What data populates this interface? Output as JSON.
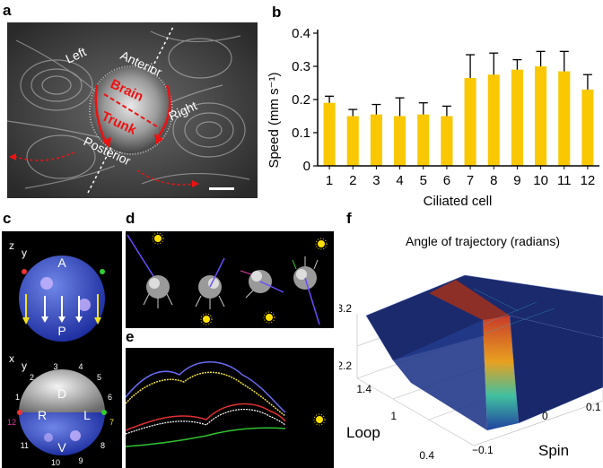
{
  "panel_labels": {
    "a": "a",
    "b": "b",
    "c": "c",
    "d": "d",
    "e": "e",
    "f": "f"
  },
  "panel_a": {
    "labels": {
      "left": "Left",
      "anterior": "Anterior",
      "brain": "Brain",
      "trunk": "Trunk",
      "right": "Right",
      "posterior": "Posterior"
    }
  },
  "chart_data": [
    {
      "type": "bar",
      "panel": "b",
      "categories": [
        "1",
        "2",
        "3",
        "4",
        "5",
        "6",
        "7",
        "8",
        "9",
        "10",
        "11",
        "12"
      ],
      "values": [
        0.19,
        0.15,
        0.155,
        0.15,
        0.155,
        0.15,
        0.265,
        0.275,
        0.29,
        0.3,
        0.285,
        0.23
      ],
      "errors": [
        0.02,
        0.02,
        0.03,
        0.055,
        0.035,
        0.03,
        0.07,
        0.065,
        0.03,
        0.045,
        0.06,
        0.045
      ],
      "xlabel": "Ciliated cell",
      "ylabel": "Speed (mm s⁻¹)",
      "yticks": [
        "0",
        "0.1",
        "0.2",
        "0.3",
        "0.4"
      ],
      "ylim": [
        0,
        0.4
      ],
      "bar_color": "#f9c800"
    },
    {
      "type": "surface",
      "panel": "f",
      "title": "Angle of trajectory (radians)",
      "zticks": [
        "3.2",
        "2.2"
      ],
      "loop_ticks": [
        "1.4",
        "1",
        "0.4"
      ],
      "spin_ticks": [
        "0",
        "−0.1",
        "0.1"
      ],
      "xlabel": "Loop",
      "ylabel": "Spin"
    }
  ],
  "panel_c": {
    "top_axes": {
      "z": "z",
      "y": "y"
    },
    "top_labels": {
      "a": "A",
      "p": "P"
    },
    "bottom_axes": {
      "x": "x",
      "y": "y"
    },
    "bottom_labels": {
      "d": "D",
      "r": "R",
      "l": "L",
      "v": "V"
    },
    "cell_numbers": [
      "1",
      "2",
      "3",
      "4",
      "5",
      "6",
      "7",
      "8",
      "9",
      "10",
      "11",
      "12"
    ]
  }
}
